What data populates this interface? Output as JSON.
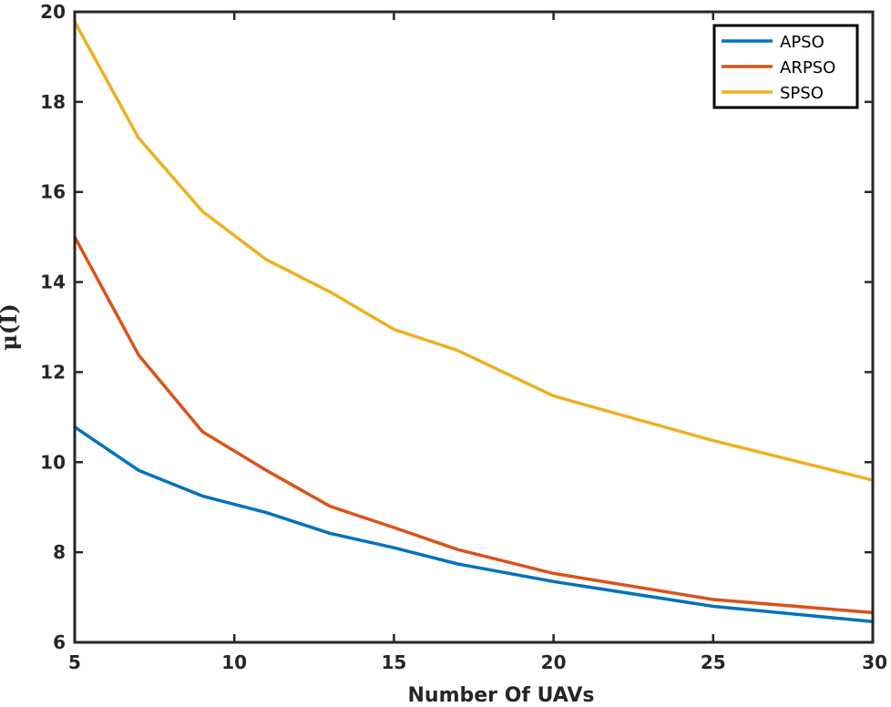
{
  "chart_data": {
    "type": "line",
    "title": "",
    "xlabel": "Number Of UAVs",
    "ylabel": "μ(I)",
    "xlim": [
      5,
      30
    ],
    "ylim": [
      6,
      20
    ],
    "xticks": [
      5,
      10,
      15,
      20,
      25,
      30
    ],
    "yticks": [
      6,
      8,
      10,
      12,
      14,
      16,
      18,
      20
    ],
    "x": [
      5,
      7,
      9,
      11,
      13,
      15,
      17,
      20,
      25,
      30
    ],
    "series": [
      {
        "name": "APSO",
        "color": "#0072BD",
        "values": [
          10.78,
          9.82,
          9.25,
          8.88,
          8.42,
          8.1,
          7.74,
          7.35,
          6.8,
          6.46
        ]
      },
      {
        "name": "ARPSO",
        "color": "#D95319",
        "values": [
          15.0,
          12.38,
          10.68,
          9.82,
          9.02,
          8.55,
          8.06,
          7.53,
          6.95,
          6.66
        ]
      },
      {
        "name": "SPSO",
        "color": "#EDB120",
        "values": [
          19.78,
          17.2,
          15.57,
          14.5,
          13.78,
          12.95,
          12.48,
          11.47,
          10.48,
          9.6
        ]
      }
    ],
    "grid": false,
    "legend_position": "top-right"
  }
}
